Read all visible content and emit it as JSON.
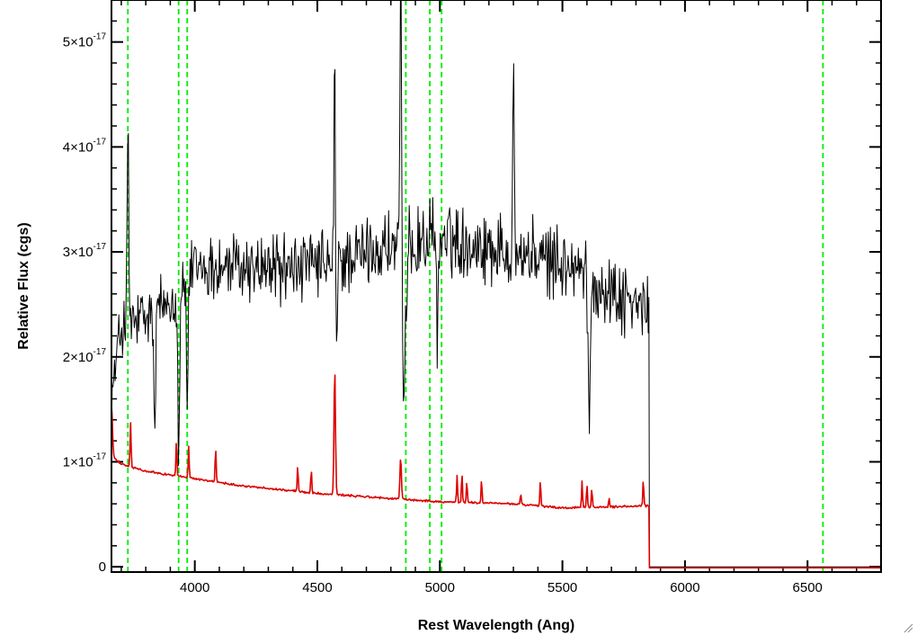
{
  "chart_data": {
    "type": "line",
    "xlabel": "Rest Wavelength (Ang)",
    "ylabel": "Relative Flux (cgs)",
    "xlim": [
      3660,
      6800
    ],
    "ylim": [
      -0.05,
      5.4
    ],
    "y_unit_exponent": -17,
    "x_ticks": [
      {
        "value": 4000,
        "label": "4000"
      },
      {
        "value": 4500,
        "label": "4500"
      },
      {
        "value": 5000,
        "label": "5000"
      },
      {
        "value": 5500,
        "label": "5500"
      },
      {
        "value": 6000,
        "label": "6000"
      },
      {
        "value": 6500,
        "label": "6500"
      }
    ],
    "y_ticks": [
      {
        "value": 0,
        "mantissa": "0",
        "exponent": ""
      },
      {
        "value": 1,
        "mantissa": "1×10",
        "exponent": "-17"
      },
      {
        "value": 2,
        "mantissa": "2×10",
        "exponent": "-17"
      },
      {
        "value": 3,
        "mantissa": "3×10",
        "exponent": "-17"
      },
      {
        "value": 4,
        "mantissa": "4×10",
        "exponent": "-17"
      },
      {
        "value": 5,
        "mantissa": "5×10",
        "exponent": "-17"
      }
    ],
    "x_minor_step": 100,
    "y_minor_step": 0.2,
    "reference_lines": {
      "color": "#00ee00",
      "style": "dashed",
      "x": [
        3727,
        3934,
        3969,
        4861,
        4959,
        5007,
        6563
      ]
    },
    "series": [
      {
        "color": "#000000",
        "x_start": 3660,
        "x_end": 5855,
        "x_step": 3,
        "continuum_knots": [
          [
            3660,
            1.6
          ],
          [
            3700,
            2.3
          ],
          [
            3800,
            2.35
          ],
          [
            3900,
            2.55
          ],
          [
            4000,
            2.85
          ],
          [
            4200,
            2.85
          ],
          [
            4500,
            2.85
          ],
          [
            4800,
            3.05
          ],
          [
            5000,
            3.15
          ],
          [
            5300,
            3.0
          ],
          [
            5550,
            2.85
          ],
          [
            5700,
            2.6
          ],
          [
            5850,
            2.45
          ]
        ],
        "noise_amplitude": 0.42,
        "features": [
          [
            3727,
            1.9,
            3
          ],
          [
            3836,
            -1.0,
            4
          ],
          [
            3934,
            -1.4,
            4
          ],
          [
            3969,
            -1.1,
            4
          ],
          [
            4571,
            2.8,
            3
          ],
          [
            4575,
            -1.2,
            5
          ],
          [
            4840,
            2.9,
            3
          ],
          [
            4852,
            -1.6,
            4
          ],
          [
            4861,
            -0.8,
            5
          ],
          [
            4990,
            -0.9,
            4
          ],
          [
            5300,
            1.9,
            3
          ],
          [
            5610,
            -1.2,
            5
          ]
        ],
        "drop_to": 0.0
      },
      {
        "color": "#dd0000",
        "x_start": 3660,
        "x_end": 5855,
        "x_step": 3,
        "continuum_knots": [
          [
            3660,
            1.05
          ],
          [
            3700,
            0.98
          ],
          [
            3800,
            0.91
          ],
          [
            4000,
            0.84
          ],
          [
            4200,
            0.77
          ],
          [
            4500,
            0.7
          ],
          [
            4800,
            0.65
          ],
          [
            5000,
            0.62
          ],
          [
            5300,
            0.6
          ],
          [
            5500,
            0.56
          ],
          [
            5850,
            0.58
          ]
        ],
        "noise_amplitude": 0.012,
        "features": [
          [
            3660,
            0.5,
            4
          ],
          [
            3738,
            0.42,
            2
          ],
          [
            3925,
            0.35,
            2
          ],
          [
            3975,
            0.3,
            2
          ],
          [
            4085,
            0.32,
            2
          ],
          [
            4420,
            0.25,
            2
          ],
          [
            4475,
            0.22,
            2
          ],
          [
            4571,
            1.2,
            3
          ],
          [
            4840,
            0.4,
            3
          ],
          [
            5070,
            0.25,
            2
          ],
          [
            5090,
            0.28,
            2
          ],
          [
            5110,
            0.2,
            2
          ],
          [
            5170,
            0.22,
            2
          ],
          [
            5330,
            0.1,
            2
          ],
          [
            5410,
            0.25,
            2
          ],
          [
            5580,
            0.25,
            2
          ],
          [
            5600,
            0.22,
            2
          ],
          [
            5620,
            0.18,
            2
          ],
          [
            5690,
            0.08,
            2
          ],
          [
            5830,
            0.25,
            2
          ]
        ],
        "drop_to": -0.01
      }
    ]
  }
}
